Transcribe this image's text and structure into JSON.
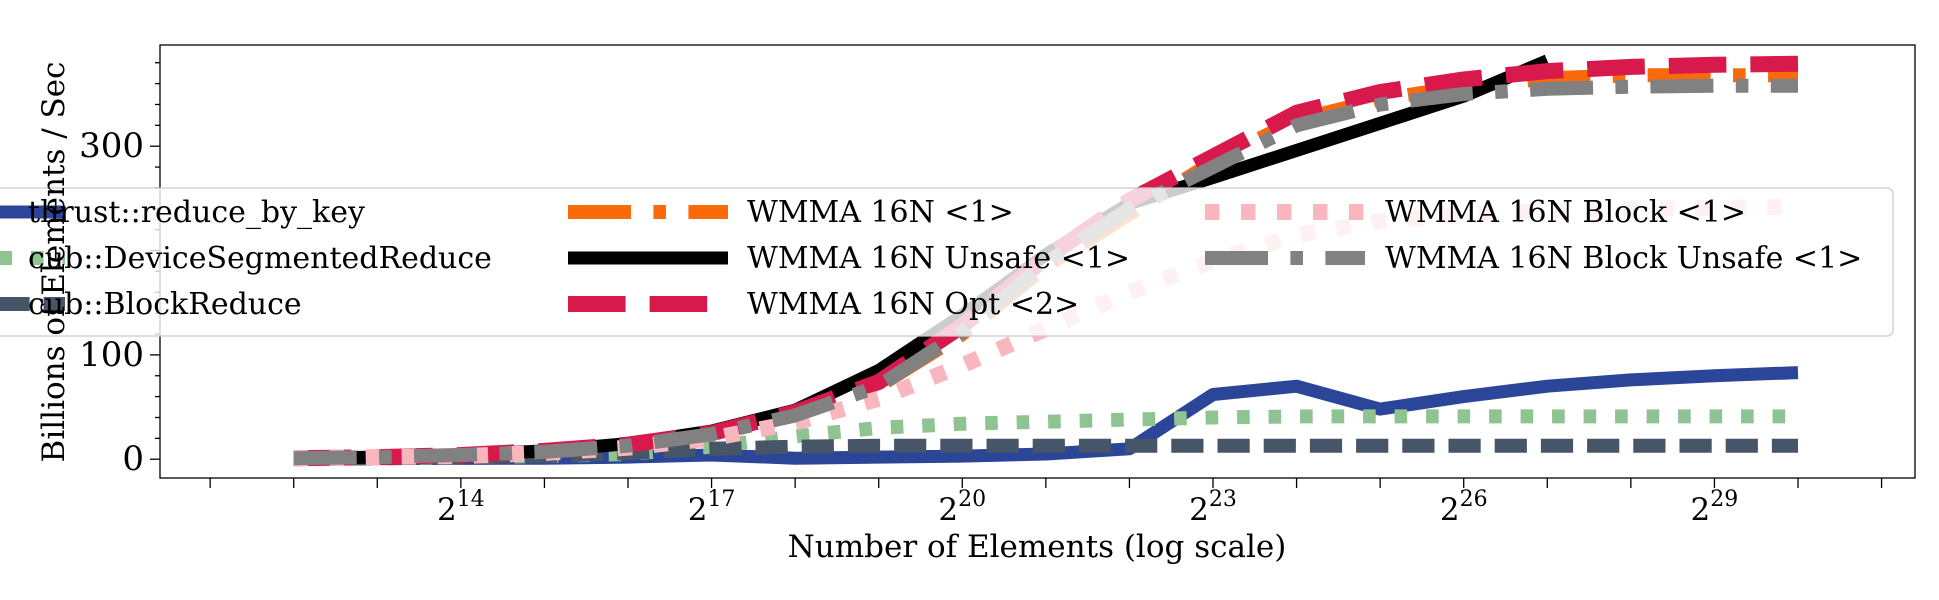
{
  "chart_data": {
    "type": "line",
    "title": "",
    "xlabel": "Number of Elements (log scale)",
    "ylabel": "Billions of Elements / Sec",
    "x_scale": "log2",
    "x_tick_labels": [
      {
        "exp": 14,
        "label": "2",
        "sup": "14"
      },
      {
        "exp": 17,
        "label": "2",
        "sup": "17"
      },
      {
        "exp": 20,
        "label": "2",
        "sup": "20"
      },
      {
        "exp": 23,
        "label": "2",
        "sup": "23"
      },
      {
        "exp": 26,
        "label": "2",
        "sup": "26"
      },
      {
        "exp": 29,
        "label": "2",
        "sup": "29"
      }
    ],
    "y_ticks": [
      0,
      100,
      300
    ],
    "y_tick_labels": [
      "0",
      "100",
      "300"
    ],
    "xlim_exp": [
      10.4,
      31.4
    ],
    "ylim": [
      -18,
      397
    ],
    "x_exp": [
      12,
      13,
      14,
      15,
      16,
      17,
      18,
      19,
      20,
      21,
      22,
      23,
      24,
      25,
      26,
      27,
      28,
      29,
      30
    ],
    "grid": false,
    "legend_position": "upper-center",
    "series": [
      {
        "name": "thrust::reduce_by_key",
        "color": "#2b4598",
        "dash": "solid",
        "width": 13,
        "values": [
          0.5,
          0.6,
          0.8,
          1,
          2,
          4,
          1,
          2,
          3,
          5,
          10,
          62,
          70,
          48,
          60,
          70,
          76,
          80,
          83
        ]
      },
      {
        "name": "cub::DeviceSegmentedReduce",
        "color": "#8fc492",
        "dash": "dotted",
        "width": 14,
        "values": [
          0.5,
          0.8,
          2,
          3,
          5,
          12,
          22,
          30,
          34,
          36,
          38,
          40,
          41,
          41,
          41,
          41,
          41,
          41,
          41
        ]
      },
      {
        "name": "cub::BlockReduce",
        "color": "#475568",
        "dash": "dashed",
        "width": 14,
        "values": [
          0.5,
          0.8,
          2,
          3,
          6,
          10,
          12,
          13,
          13,
          13,
          13,
          13,
          13,
          13,
          13,
          13,
          13,
          13,
          13
        ]
      },
      {
        "name": "WMMA 16N <1>",
        "color": "#fb6a0a",
        "dash": "dashdot",
        "width": 14,
        "values": [
          1,
          2,
          4,
          7,
          13,
          24,
          42,
          70,
          120,
          185,
          235,
          285,
          325,
          345,
          357,
          365,
          368,
          368,
          368
        ]
      },
      {
        "name": "WMMA 16N Unsafe <1>",
        "color": "#000000",
        "dash": "solid",
        "width": 13,
        "values": [
          1,
          2,
          4,
          8,
          15,
          27,
          47,
          85,
          138,
          196,
          245,
          270,
          296,
          322,
          348,
          382,
          null,
          null,
          null
        ]
      },
      {
        "name": "WMMA 16N Opt <2>",
        "color": "#d8194c",
        "dash": "longdash",
        "width": 16,
        "values": [
          1,
          2,
          4,
          8,
          14,
          25,
          45,
          74,
          128,
          193,
          248,
          290,
          332,
          352,
          364,
          372,
          376,
          378,
          379
        ]
      },
      {
        "name": "WMMA 16N Block <1>",
        "color": "#f9b7bd",
        "dash": "dotted",
        "width": 16,
        "values": [
          1,
          2,
          3,
          6,
          11,
          20,
          35,
          58,
          90,
          125,
          160,
          190,
          215,
          228,
          235,
          238,
          240,
          241,
          242
        ]
      },
      {
        "name": "WMMA 16N Block Unsafe <1>",
        "color": "#818181",
        "dash": "dashdot",
        "width": 14,
        "values": [
          1,
          2,
          4,
          7,
          13,
          24,
          42,
          70,
          122,
          188,
          240,
          280,
          320,
          340,
          350,
          355,
          357,
          358,
          358
        ]
      }
    ]
  }
}
